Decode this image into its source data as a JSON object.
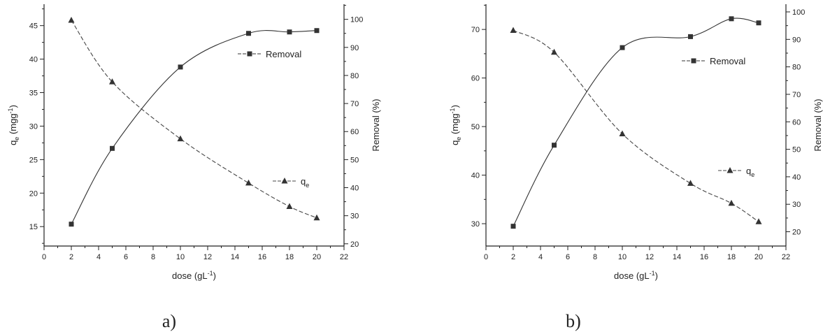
{
  "chart_data": [
    {
      "type": "scatter",
      "panel_label": "a)",
      "xlabel": "dose (gL",
      "xlabel_sup": "-1",
      "xlabel_end": ")",
      "y1label": "q",
      "y1label_sub": "e",
      "y1label_rest": " (mgg",
      "y1label_sup": "-1",
      "y1label_end": ")",
      "y2label": "Removal (%)",
      "xlim": [
        0,
        22
      ],
      "y1lim": [
        12,
        48
      ],
      "y2lim": [
        20,
        105
      ],
      "xticks": [
        "0",
        "2",
        "4",
        "6",
        "8",
        "10",
        "12",
        "14",
        "16",
        "18",
        "20",
        "22"
      ],
      "y1ticks": [
        "15",
        "20",
        "25",
        "30",
        "35",
        "40",
        "45"
      ],
      "y2ticks": [
        "20",
        "30",
        "40",
        "50",
        "60",
        "70",
        "80",
        "90",
        "100"
      ],
      "series": [
        {
          "name": "q",
          "name_sub": "e",
          "axis": "left",
          "marker": "triangle",
          "line": "dashed",
          "x": [
            2,
            5,
            10,
            15,
            18,
            20
          ],
          "y": [
            45.8,
            36.6,
            28.1,
            21.5,
            18.0,
            16.3
          ]
        },
        {
          "name": "Removal",
          "axis": "right",
          "marker": "square",
          "line": "solid",
          "x": [
            2,
            5,
            10,
            15,
            18,
            20
          ],
          "y": [
            27,
            54,
            83,
            95,
            95.5,
            96
          ]
        }
      ]
    },
    {
      "type": "scatter",
      "panel_label": "b)",
      "xlabel": "dose (gL",
      "xlabel_sup": "-1",
      "xlabel_end": ")",
      "y1label": "q",
      "y1label_sub": "e",
      "y1label_rest": " (mgg",
      "y1label_sup": "-1",
      "y1label_end": ")",
      "y2label": "Removal (%)",
      "xlim": [
        0,
        22
      ],
      "y1lim": [
        25,
        75
      ],
      "y2lim": [
        15,
        102
      ],
      "xticks": [
        "0",
        "2",
        "4",
        "6",
        "8",
        "10",
        "12",
        "14",
        "16",
        "18",
        "20",
        "22"
      ],
      "y1ticks": [
        "30",
        "40",
        "50",
        "60",
        "70"
      ],
      "y2ticks": [
        "20",
        "30",
        "40",
        "50",
        "60",
        "70",
        "80",
        "90",
        "100"
      ],
      "series": [
        {
          "name": "q",
          "name_sub": "e",
          "axis": "left",
          "marker": "triangle",
          "line": "dashed",
          "x": [
            2,
            5,
            10,
            15,
            18,
            20
          ],
          "y": [
            69.8,
            65.3,
            48.5,
            38.3,
            34.2,
            30.4
          ]
        },
        {
          "name": "Removal",
          "axis": "right",
          "marker": "square",
          "line": "solid",
          "x": [
            2,
            5,
            10,
            15,
            18,
            20
          ],
          "y": [
            22,
            51.5,
            87,
            91,
            97.5,
            96
          ]
        }
      ]
    }
  ]
}
